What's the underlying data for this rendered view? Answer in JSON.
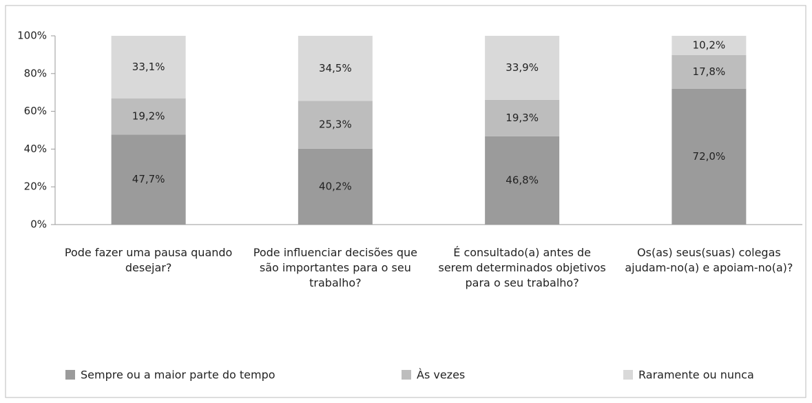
{
  "chart_data": {
    "type": "stacked_bar",
    "categories": [
      "Pode fazer uma pausa quando desejar?",
      "Pode influenciar decisões que são importantes para o seu trabalho?",
      "É consultado(a) antes de serem determinados objetivos para o seu trabalho?",
      "Os(as) seus(suas) colegas ajudam-no(a) e apoiam-no(a)?"
    ],
    "series": [
      {
        "name": "Sempre ou a maior parte do tempo",
        "color": "#9b9b9b",
        "values": [
          47.7,
          40.2,
          46.8,
          72.0
        ],
        "value_labels": [
          "47,7%",
          "40,2%",
          "46,8%",
          "72,0%"
        ]
      },
      {
        "name": "Às vezes",
        "color": "#bdbdbd",
        "values": [
          19.2,
          25.3,
          19.3,
          17.8
        ],
        "value_labels": [
          "19,2%",
          "25,3%",
          "19,3%",
          "17,8%"
        ]
      },
      {
        "name": "Raramente ou nunca",
        "color": "#d9d9d9",
        "values": [
          33.1,
          34.5,
          33.9,
          10.2
        ],
        "value_labels": [
          "33,1%",
          "34,5%",
          "33,9%",
          "10,2%"
        ]
      }
    ],
    "ylim": [
      0,
      100
    ],
    "yticks": [
      {
        "value": 0,
        "label": "0%"
      },
      {
        "value": 20,
        "label": "20%"
      },
      {
        "value": 40,
        "label": "40%"
      },
      {
        "value": 60,
        "label": "60%"
      },
      {
        "value": 80,
        "label": "80%"
      },
      {
        "value": 100,
        "label": "100%"
      }
    ],
    "legend": "bottom"
  }
}
